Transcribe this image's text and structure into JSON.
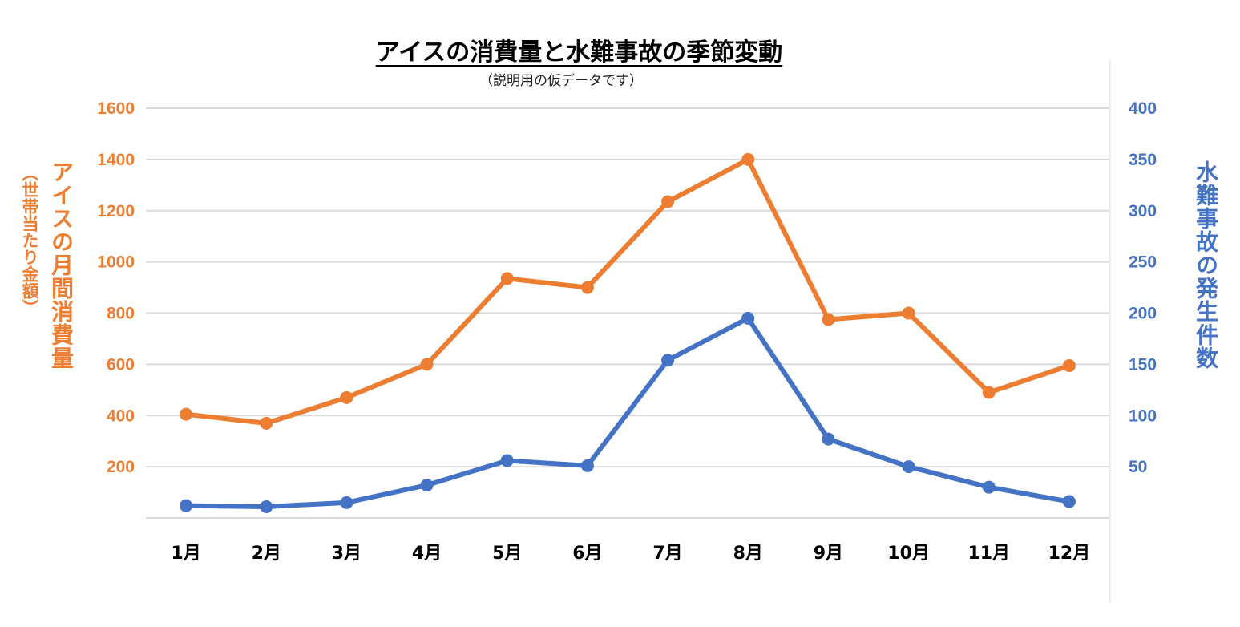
{
  "chart_data": {
    "type": "line",
    "title": "アイスの消費量と水難事故の季節変動",
    "subtitle": "（説明用の仮データです）",
    "categories": [
      "1月",
      "2月",
      "3月",
      "4月",
      "5月",
      "6月",
      "7月",
      "8月",
      "9月",
      "10月",
      "11月",
      "12月"
    ],
    "series": [
      {
        "name": "アイスの月間消費量",
        "axis": "left",
        "color": "#ED7D31",
        "values": [
          405,
          370,
          470,
          600,
          935,
          900,
          1235,
          1400,
          775,
          800,
          490,
          595
        ]
      },
      {
        "name": "水難事故の発生件数",
        "axis": "right",
        "color": "#4472C4",
        "values": [
          12,
          11,
          15,
          32,
          56,
          51,
          154,
          195,
          77,
          50,
          30,
          16
        ]
      }
    ],
    "ylabel_left": "アイスの月間消費量",
    "ylabel_left_sub": "（世帯当たり金額）",
    "ylabel_right": "水難事故の発生件数",
    "ylim_left": [
      0,
      1600
    ],
    "yticks_left": [
      "200",
      "400",
      "600",
      "800",
      "1000",
      "1200",
      "1400",
      "1600"
    ],
    "ylim_right": [
      0,
      400
    ],
    "yticks_right": [
      "50",
      "100",
      "150",
      "200",
      "250",
      "300",
      "350",
      "400"
    ],
    "grid": true
  }
}
